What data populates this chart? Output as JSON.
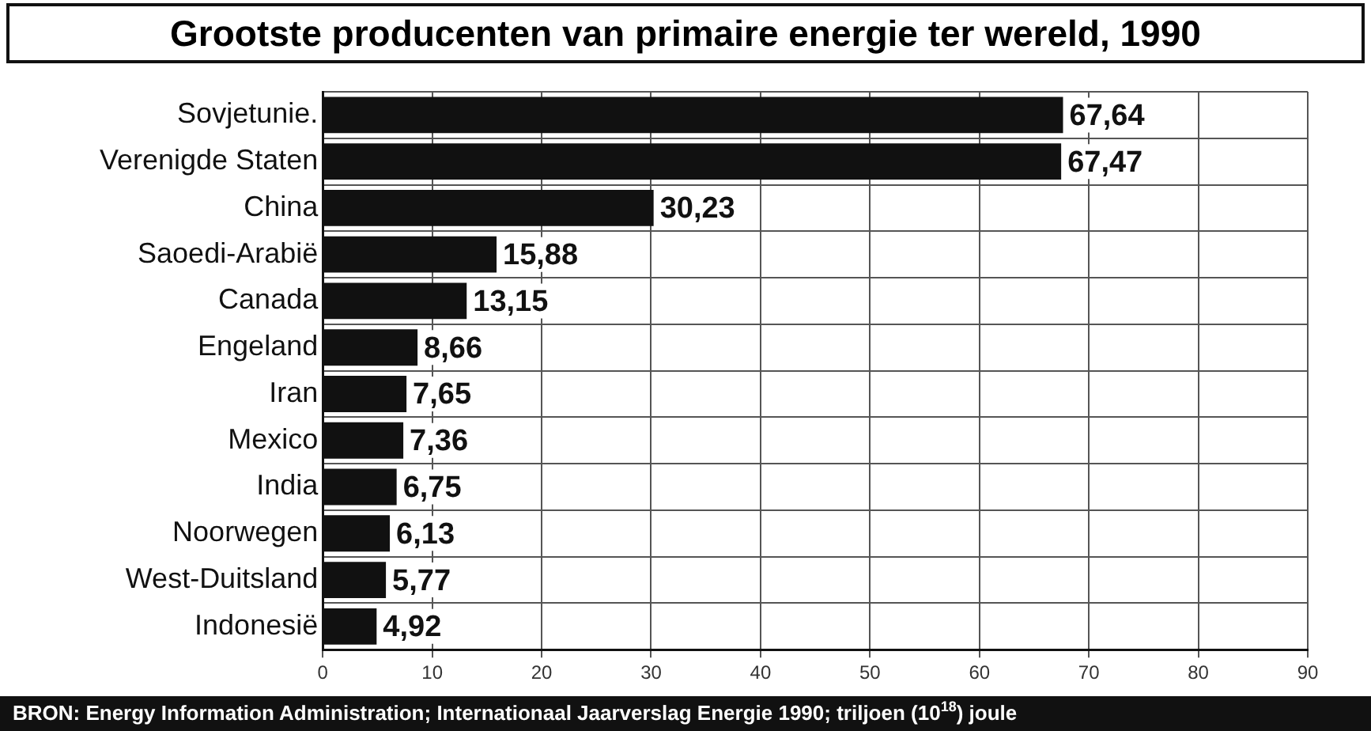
{
  "chart_data": {
    "type": "bar",
    "orientation": "horizontal",
    "title": "Grootste producenten van primaire energie ter wereld, 1990",
    "categories": [
      "Sovjetunie.",
      "Verenigde Staten",
      "China",
      "Saoedi-Arabië",
      "Canada",
      "Engeland",
      "Iran",
      "Mexico",
      "India",
      "Noorwegen",
      "West-Duitsland",
      "Indonesië"
    ],
    "values": [
      67.64,
      67.47,
      30.23,
      15.88,
      13.15,
      8.66,
      7.65,
      7.36,
      6.75,
      6.13,
      5.77,
      4.92
    ],
    "value_labels": [
      "67,64",
      "67,47",
      "30,23",
      "15,88",
      "13,15",
      "8,66",
      "7,65",
      "7,36",
      "6,75",
      "6,13",
      "5,77",
      "4,92"
    ],
    "color": "#111111",
    "xlim": [
      0,
      90
    ],
    "xticks": [
      0,
      10,
      20,
      30,
      40,
      50,
      60,
      70,
      80,
      90
    ],
    "grid": true,
    "annotations": [
      "BRON: Energy Information Administration; Internationaal Jaarverslag Energie 1990; triljoen (10$^{18}$) joule"
    ]
  }
}
